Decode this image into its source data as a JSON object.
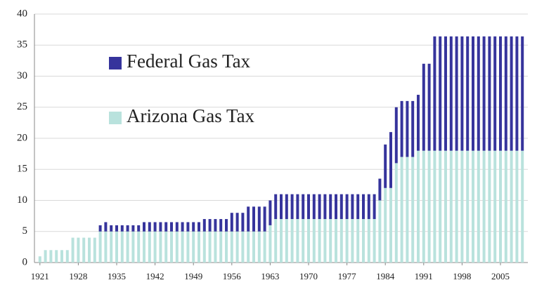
{
  "chart_data": {
    "type": "bar",
    "stacked": true,
    "x": [
      1921,
      1922,
      1923,
      1924,
      1925,
      1926,
      1927,
      1928,
      1929,
      1930,
      1931,
      1932,
      1933,
      1934,
      1935,
      1936,
      1937,
      1938,
      1939,
      1940,
      1941,
      1942,
      1943,
      1944,
      1945,
      1946,
      1947,
      1948,
      1949,
      1950,
      1951,
      1952,
      1953,
      1954,
      1955,
      1956,
      1957,
      1958,
      1959,
      1960,
      1961,
      1962,
      1963,
      1964,
      1965,
      1966,
      1967,
      1968,
      1969,
      1970,
      1971,
      1972,
      1973,
      1974,
      1975,
      1976,
      1977,
      1978,
      1979,
      1980,
      1981,
      1982,
      1983,
      1984,
      1985,
      1986,
      1987,
      1988,
      1989,
      1990,
      1991,
      1992,
      1993,
      1994,
      1995,
      1996,
      1997,
      1998,
      1999,
      2000,
      2001,
      2002,
      2003,
      2004,
      2005,
      2006,
      2007,
      2008,
      2009
    ],
    "series": [
      {
        "name": "Arizona Gas Tax",
        "color": "#b9e2dd",
        "values": [
          1,
          2,
          2,
          2,
          2,
          2,
          4,
          4,
          4,
          4,
          4,
          5,
          5,
          5,
          5,
          5,
          5,
          5,
          5,
          5,
          5,
          5,
          5,
          5,
          5,
          5,
          5,
          5,
          5,
          5,
          5,
          5,
          5,
          5,
          5,
          5,
          5,
          5,
          5,
          5,
          5,
          5,
          6,
          7,
          7,
          7,
          7,
          7,
          7,
          7,
          7,
          7,
          7,
          7,
          7,
          7,
          7,
          7,
          7,
          7,
          7,
          7,
          10,
          12,
          12,
          16,
          17,
          17,
          17,
          18,
          18,
          18,
          18,
          18,
          18,
          18,
          18,
          18,
          18,
          18,
          18,
          18,
          18,
          18,
          18,
          18,
          18,
          18,
          18
        ]
      },
      {
        "name": "Federal Gas Tax",
        "color": "#36349c",
        "values": [
          0,
          0,
          0,
          0,
          0,
          0,
          0,
          0,
          0,
          0,
          0,
          1,
          1.5,
          1,
          1,
          1,
          1,
          1,
          1,
          1.5,
          1.5,
          1.5,
          1.5,
          1.5,
          1.5,
          1.5,
          1.5,
          1.5,
          1.5,
          1.5,
          2,
          2,
          2,
          2,
          2,
          3,
          3,
          3,
          4,
          4,
          4,
          4,
          4,
          4,
          4,
          4,
          4,
          4,
          4,
          4,
          4,
          4,
          4,
          4,
          4,
          4,
          4,
          4,
          4,
          4,
          4,
          4,
          3.5,
          7,
          9,
          9,
          9,
          9,
          9,
          9,
          14,
          14,
          18.4,
          18.4,
          18.4,
          18.4,
          18.4,
          18.4,
          18.4,
          18.4,
          18.4,
          18.4,
          18.4,
          18.4,
          18.4,
          18.4,
          18.4,
          18.4,
          18.4
        ]
      }
    ],
    "xlim": [
      1920,
      2010
    ],
    "xticks": [
      1921,
      1928,
      1935,
      1942,
      1949,
      1956,
      1963,
      1970,
      1977,
      1984,
      1991,
      1998,
      2005
    ],
    "ylim": [
      0,
      40
    ],
    "yticks": [
      0,
      5,
      10,
      15,
      20,
      25,
      30,
      35,
      40
    ],
    "grid": true
  }
}
